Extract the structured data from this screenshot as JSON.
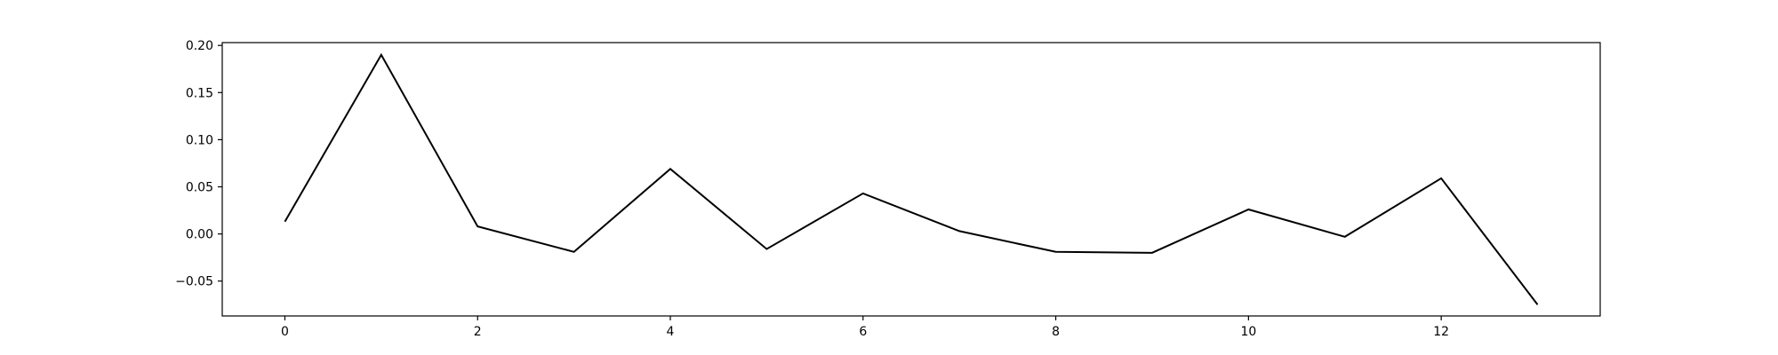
{
  "chart_data": {
    "type": "line",
    "title": "",
    "xlabel": "",
    "ylabel": "",
    "xlim": [
      -0.65,
      13.65
    ],
    "ylim": [
      -0.087,
      0.203
    ],
    "xticks": [
      0,
      2,
      4,
      6,
      8,
      10,
      12
    ],
    "xtick_labels": [
      "0",
      "2",
      "4",
      "6",
      "8",
      "10",
      "12"
    ],
    "yticks": [
      -0.05,
      0.0,
      0.05,
      0.1,
      0.15,
      0.2
    ],
    "ytick_labels": [
      "−0.05",
      "0.00",
      "0.05",
      "0.10",
      "0.15",
      "0.20"
    ],
    "grid": false,
    "legend": "none",
    "series": [
      {
        "color": "#000000",
        "x": [
          0,
          1,
          2,
          3,
          4,
          5,
          6,
          7,
          8,
          9,
          10,
          11,
          12,
          13
        ],
        "y": [
          0.013,
          0.19,
          0.008,
          -0.019,
          0.069,
          -0.016,
          0.043,
          0.003,
          -0.019,
          -0.02,
          0.026,
          -0.003,
          0.059,
          -0.075
        ]
      }
    ]
  }
}
